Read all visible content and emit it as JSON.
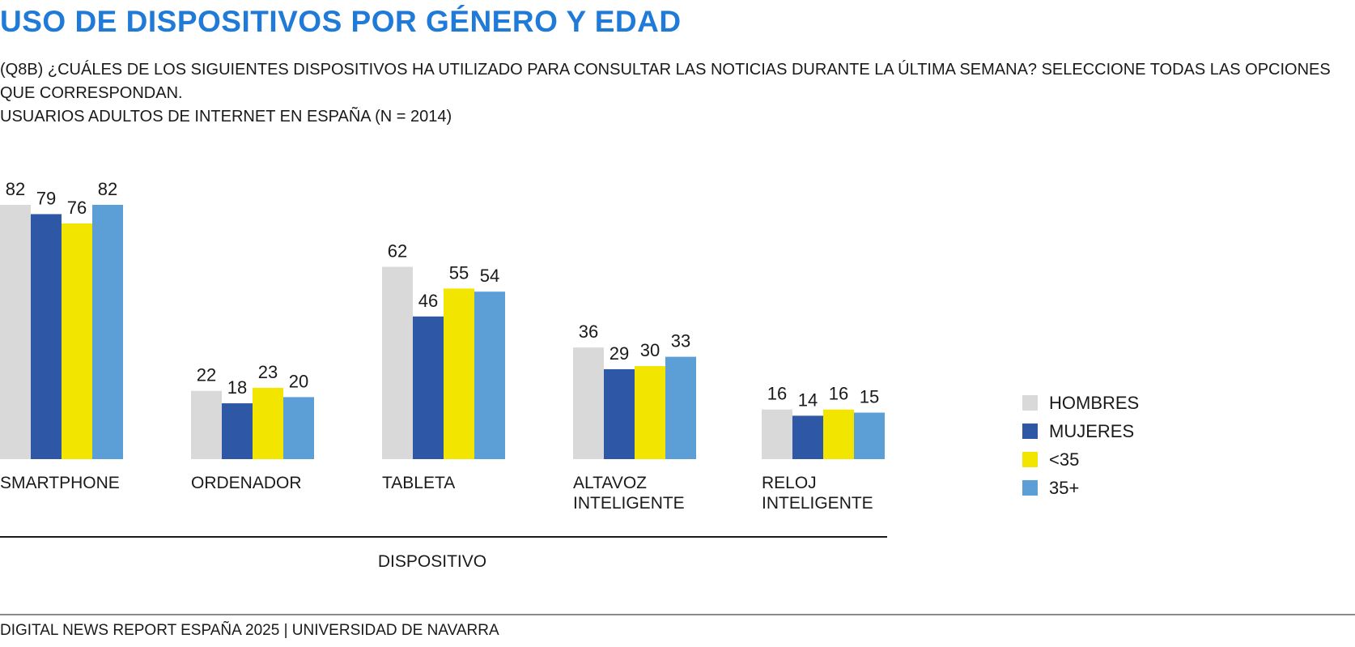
{
  "title": "USO DE DISPOSITIVOS POR GÉNERO Y EDAD",
  "subtitle_line1": "(Q8B) ¿CUÁLES DE LOS SIGUIENTES DISPOSITIVOS HA UTILIZADO PARA CONSULTAR LAS NOTICIAS  DURANTE LA ÚLTIMA SEMANA? SELECCIONE TODAS LAS OPCIONES QUE CORRESPONDAN.",
  "subtitle_line2": "USUARIOS ADULTOS DE INTERNET EN ESPAÑA (N = 2014)",
  "footer": "DIGITAL NEWS REPORT ESPAÑA 2025 | UNIVERSIDAD DE NAVARRA",
  "chart_data": {
    "type": "bar",
    "xlabel": "DISPOSITIVO",
    "ylabel": "",
    "ylim": [
      0,
      82
    ],
    "grid": false,
    "legend_position": "right",
    "categories": [
      [
        "SMARTPHONE"
      ],
      [
        "ORDENADOR"
      ],
      [
        "TABLETA"
      ],
      [
        "ALTAVOZ",
        "INTELIGENTE"
      ],
      [
        "RELOJ",
        "INTELIGENTE"
      ]
    ],
    "series": [
      {
        "name": "HOMBRES",
        "color": "#d9d9d9",
        "values": [
          82,
          22,
          62,
          36,
          16
        ]
      },
      {
        "name": "MUJERES",
        "color": "#2e58a5",
        "values": [
          79,
          18,
          46,
          29,
          14
        ]
      },
      {
        "name": "<35",
        "color": "#f2e500",
        "values": [
          76,
          23,
          55,
          30,
          16
        ]
      },
      {
        "name": "35+",
        "color": "#5b9fd6",
        "values": [
          82,
          20,
          54,
          33,
          15
        ]
      }
    ]
  }
}
